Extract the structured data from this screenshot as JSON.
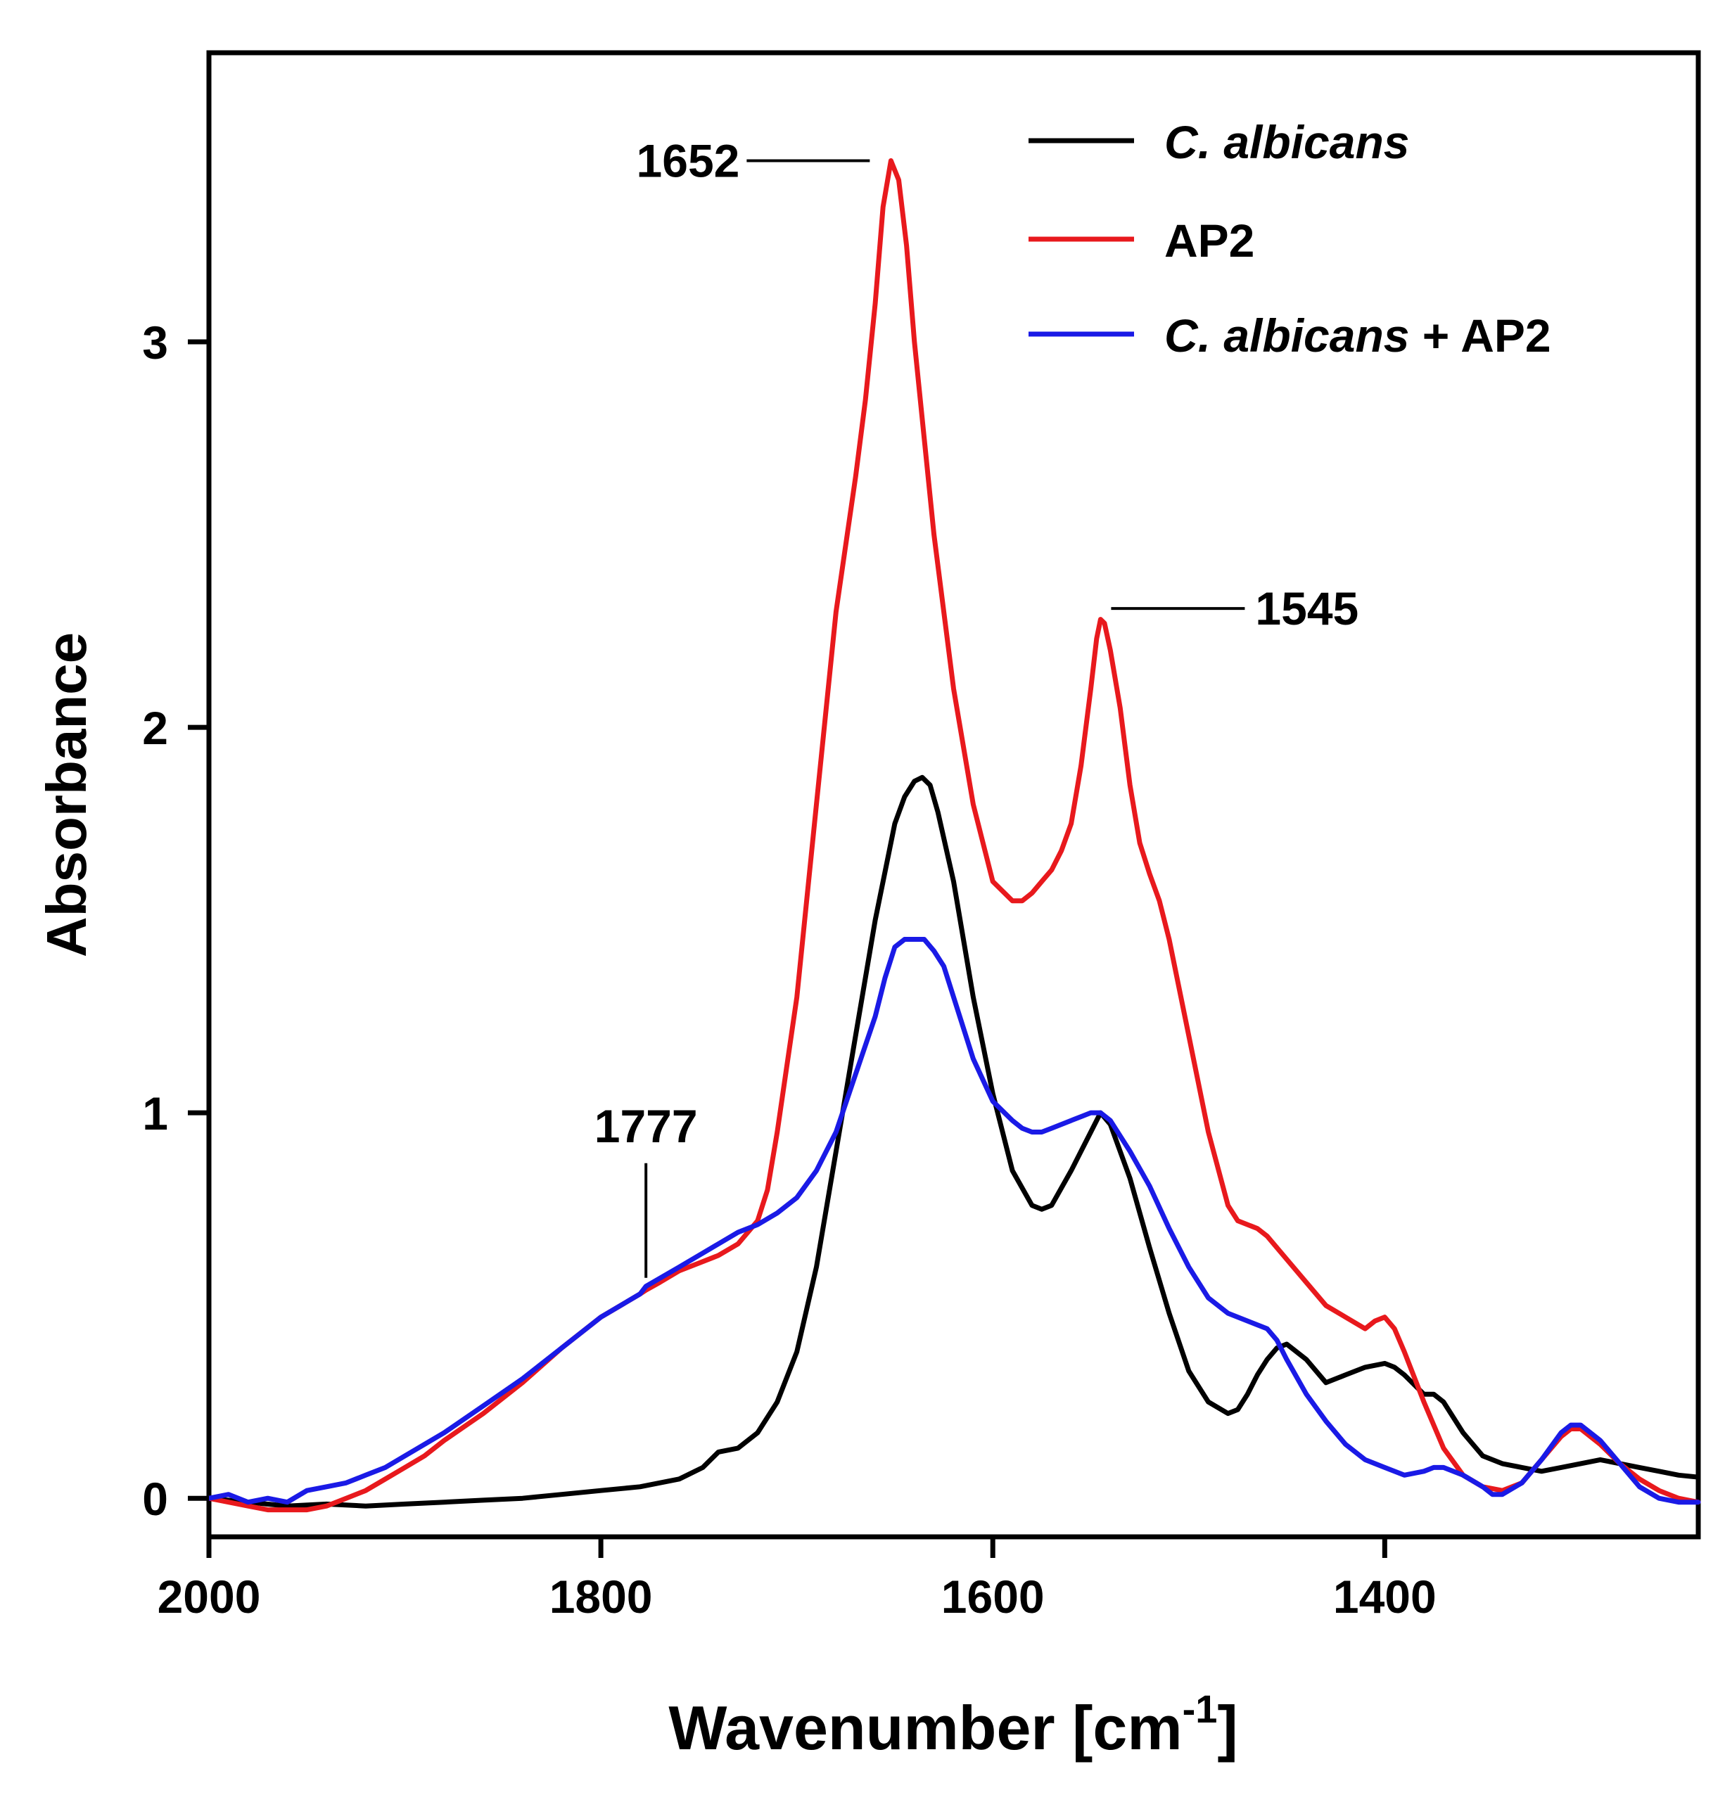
{
  "chart_data": {
    "type": "line",
    "title": "",
    "xlabel": "Wavenumber [cm",
    "xlabel_sup": "-1",
    "xlabel_close": "]",
    "ylabel": "Absorbance",
    "xlim": [
      2000,
      1240
    ],
    "ylim": [
      -0.1,
      3.75
    ],
    "x_ticks": [
      2000,
      1800,
      1600,
      1400
    ],
    "x_tick_labels": [
      "2000",
      "1800",
      "1600",
      "1400"
    ],
    "y_ticks": [
      0,
      1,
      2,
      3
    ],
    "y_tick_labels": [
      "0",
      "1",
      "2",
      "3"
    ],
    "grid": false,
    "legend_position": "top-right",
    "legend_items": [
      {
        "series_index": 0,
        "italic": "C. albicans",
        "plain": ""
      },
      {
        "series_index": 1,
        "italic": "",
        "plain": "AP2"
      },
      {
        "series_index": 2,
        "italic": "C. albicans",
        "plain": " + AP2"
      }
    ],
    "annotations": [
      {
        "label": "1652",
        "x": 1652,
        "y": 3.47,
        "style": "leader-left"
      },
      {
        "label": "1545",
        "x": 1545,
        "y": 2.29,
        "style": "leader-right"
      },
      {
        "label": "1777",
        "x": 1777,
        "y": 0.55,
        "style": "leader-up"
      }
    ],
    "series": [
      {
        "name": "C. albicans",
        "color": "#000000",
        "x": [
          2000,
          1980,
          1960,
          1940,
          1920,
          1900,
          1880,
          1860,
          1840,
          1820,
          1800,
          1780,
          1760,
          1748,
          1740,
          1730,
          1720,
          1710,
          1700,
          1690,
          1680,
          1670,
          1660,
          1650,
          1645,
          1640,
          1636,
          1632,
          1628,
          1620,
          1610,
          1600,
          1590,
          1580,
          1575,
          1570,
          1560,
          1550,
          1545,
          1540,
          1530,
          1520,
          1510,
          1500,
          1490,
          1480,
          1475,
          1470,
          1465,
          1460,
          1455,
          1450,
          1440,
          1430,
          1420,
          1410,
          1400,
          1395,
          1390,
          1380,
          1375,
          1370,
          1360,
          1350,
          1340,
          1330,
          1320,
          1310,
          1300,
          1290,
          1280,
          1270,
          1260,
          1250,
          1240
        ],
        "y": [
          0.0,
          -0.01,
          -0.02,
          -0.015,
          -0.02,
          -0.015,
          -0.01,
          -0.005,
          0.0,
          0.01,
          0.02,
          0.03,
          0.05,
          0.08,
          0.12,
          0.13,
          0.17,
          0.25,
          0.38,
          0.6,
          0.9,
          1.2,
          1.5,
          1.75,
          1.82,
          1.86,
          1.87,
          1.85,
          1.78,
          1.6,
          1.3,
          1.05,
          0.85,
          0.76,
          0.75,
          0.76,
          0.85,
          0.95,
          1.0,
          0.97,
          0.83,
          0.65,
          0.48,
          0.33,
          0.25,
          0.22,
          0.23,
          0.27,
          0.32,
          0.36,
          0.39,
          0.4,
          0.36,
          0.3,
          0.32,
          0.34,
          0.35,
          0.34,
          0.32,
          0.27,
          0.27,
          0.25,
          0.17,
          0.11,
          0.09,
          0.08,
          0.07,
          0.08,
          0.09,
          0.1,
          0.09,
          0.08,
          0.07,
          0.06,
          0.055
        ]
      },
      {
        "name": "AP2",
        "color": "#e8191d",
        "x": [
          2000,
          1990,
          1980,
          1970,
          1960,
          1950,
          1940,
          1930,
          1920,
          1910,
          1900,
          1890,
          1880,
          1860,
          1840,
          1820,
          1800,
          1790,
          1780,
          1777,
          1770,
          1760,
          1750,
          1740,
          1730,
          1720,
          1715,
          1710,
          1700,
          1690,
          1680,
          1670,
          1665,
          1660,
          1656,
          1652,
          1648,
          1644,
          1640,
          1635,
          1630,
          1620,
          1610,
          1600,
          1590,
          1585,
          1580,
          1575,
          1570,
          1565,
          1560,
          1555,
          1550,
          1547,
          1545,
          1543,
          1540,
          1535,
          1530,
          1525,
          1520,
          1515,
          1510,
          1500,
          1490,
          1480,
          1475,
          1470,
          1465,
          1460,
          1450,
          1440,
          1430,
          1420,
          1410,
          1405,
          1400,
          1395,
          1390,
          1380,
          1370,
          1360,
          1350,
          1340,
          1330,
          1320,
          1310,
          1305,
          1300,
          1290,
          1280,
          1270,
          1260,
          1250,
          1240
        ],
        "y": [
          0.0,
          -0.01,
          -0.02,
          -0.03,
          -0.03,
          -0.03,
          -0.02,
          0.0,
          0.02,
          0.05,
          0.08,
          0.11,
          0.15,
          0.22,
          0.3,
          0.39,
          0.47,
          0.5,
          0.53,
          0.54,
          0.56,
          0.59,
          0.61,
          0.63,
          0.66,
          0.72,
          0.8,
          0.95,
          1.3,
          1.8,
          2.3,
          2.65,
          2.85,
          3.1,
          3.35,
          3.47,
          3.42,
          3.25,
          3.0,
          2.75,
          2.5,
          2.1,
          1.8,
          1.6,
          1.55,
          1.55,
          1.57,
          1.6,
          1.63,
          1.68,
          1.75,
          1.9,
          2.1,
          2.23,
          2.28,
          2.27,
          2.2,
          2.05,
          1.85,
          1.7,
          1.62,
          1.55,
          1.45,
          1.2,
          0.95,
          0.76,
          0.72,
          0.71,
          0.7,
          0.68,
          0.62,
          0.56,
          0.5,
          0.47,
          0.44,
          0.46,
          0.47,
          0.44,
          0.38,
          0.25,
          0.13,
          0.06,
          0.03,
          0.02,
          0.04,
          0.1,
          0.16,
          0.18,
          0.18,
          0.14,
          0.09,
          0.05,
          0.02,
          0.0,
          -0.01
        ]
      },
      {
        "name": "C. albicans + AP2",
        "color": "#1a1ae6",
        "x": [
          2000,
          1990,
          1980,
          1970,
          1960,
          1950,
          1940,
          1930,
          1920,
          1910,
          1900,
          1880,
          1860,
          1840,
          1820,
          1800,
          1780,
          1777,
          1760,
          1740,
          1730,
          1720,
          1710,
          1700,
          1690,
          1680,
          1670,
          1660,
          1655,
          1650,
          1645,
          1640,
          1635,
          1630,
          1625,
          1620,
          1610,
          1600,
          1590,
          1585,
          1580,
          1575,
          1570,
          1560,
          1555,
          1550,
          1545,
          1540,
          1530,
          1520,
          1510,
          1500,
          1490,
          1480,
          1470,
          1460,
          1455,
          1450,
          1440,
          1430,
          1420,
          1410,
          1400,
          1390,
          1380,
          1375,
          1370,
          1360,
          1350,
          1345,
          1340,
          1330,
          1320,
          1310,
          1305,
          1300,
          1290,
          1280,
          1270,
          1260,
          1250,
          1245,
          1240
        ],
        "y": [
          0.0,
          0.01,
          -0.01,
          0.0,
          -0.01,
          0.02,
          0.03,
          0.04,
          0.06,
          0.08,
          0.11,
          0.17,
          0.24,
          0.31,
          0.39,
          0.47,
          0.53,
          0.55,
          0.6,
          0.66,
          0.69,
          0.71,
          0.74,
          0.78,
          0.85,
          0.95,
          1.1,
          1.25,
          1.35,
          1.43,
          1.45,
          1.45,
          1.45,
          1.42,
          1.38,
          1.3,
          1.14,
          1.03,
          0.98,
          0.96,
          0.95,
          0.95,
          0.96,
          0.98,
          0.99,
          1.0,
          1.0,
          0.98,
          0.9,
          0.81,
          0.7,
          0.6,
          0.52,
          0.48,
          0.46,
          0.44,
          0.41,
          0.36,
          0.27,
          0.2,
          0.14,
          0.1,
          0.08,
          0.06,
          0.07,
          0.08,
          0.08,
          0.06,
          0.03,
          0.01,
          0.01,
          0.04,
          0.1,
          0.17,
          0.19,
          0.19,
          0.15,
          0.09,
          0.03,
          0.0,
          -0.01,
          -0.01,
          -0.01
        ]
      }
    ]
  }
}
